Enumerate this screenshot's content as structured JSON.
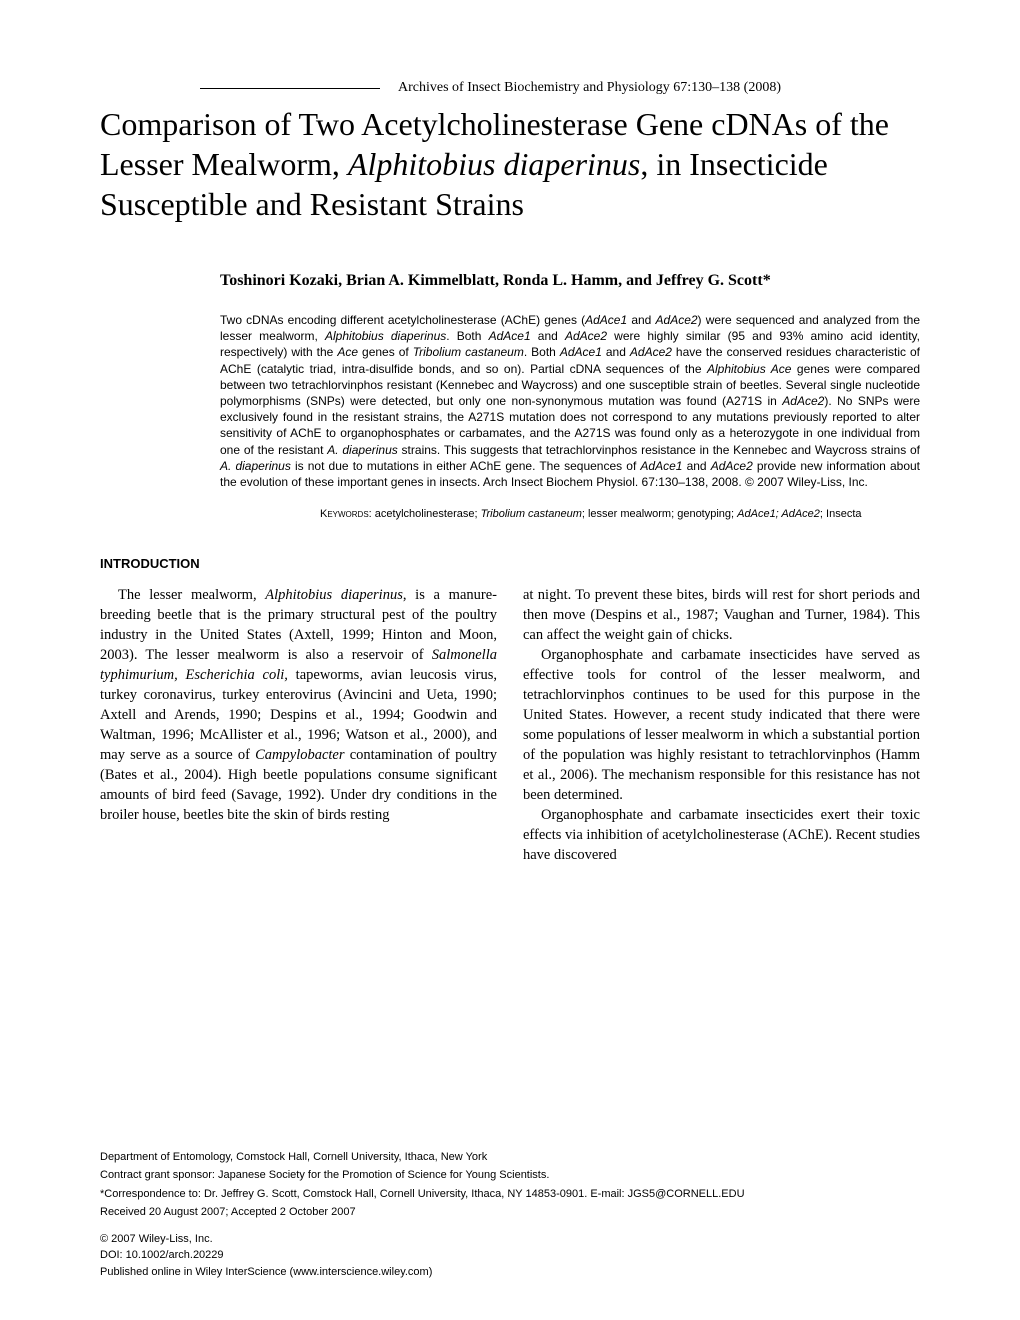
{
  "header": {
    "journal_ref": "Archives of Insect Biochemistry and Physiology 67:130–138 (2008)"
  },
  "title": {
    "pre": "Comparison of Two Acetylcholinesterase Gene cDNAs of the Lesser Mealworm, ",
    "italic": "Alphitobius diaperinus",
    "post": ", in Insecticide Susceptible and Resistant Strains"
  },
  "authors": "Toshinori Kozaki, Brian A. Kimmelblatt, Ronda L. Hamm, and Jeffrey G. Scott*",
  "abstract": {
    "p1a": "Two cDNAs encoding different acetylcholinesterase (AChE) genes (",
    "p1b": "AdAce1",
    "p1c": " and ",
    "p1d": "AdAce2",
    "p1e": ") were sequenced and analyzed from the lesser mealworm, ",
    "p1f": "Alphitobius diaperinus",
    "p1g": ". Both ",
    "p1h": "AdAce1",
    "p1i": " and ",
    "p1j": "AdAce2",
    "p1k": " were highly similar (95 and 93% amino acid identity, respectively) with the ",
    "p1l": "Ace",
    "p1m": " genes of ",
    "p1n": "Tribolium castaneum",
    "p1o": ". Both ",
    "p1p": "AdAce1",
    "p1q": " and ",
    "p1r": "AdAce2",
    "p1s": " have the conserved residues characteristic of AChE (catalytic triad, intra-disulfide bonds, and so on). Partial cDNA sequences of the ",
    "p1t": "Alphitobius Ace",
    "p1u": " genes were compared between two tetrachlorvinphos resistant (Kennebec and Waycross) and one susceptible strain of beetles. Several single nucleotide polymorphisms (SNPs) were detected, but only one non-synonymous mutation was found (A271S in ",
    "p1v": "AdAce2",
    "p1w": "). No SNPs were exclusively found in the resistant strains, the A271S mutation does not correspond to any mutations previously reported to alter sensitivity of AChE to organophosphates or carbamates, and the A271S was found only as a heterozygote in one individual from one of the resistant ",
    "p1x": "A. diaperinus",
    "p1y": " strains. This suggests that tetrachlorvinphos resistance in the Kennebec and Waycross strains of ",
    "p1z": "A. diaperinus",
    "p2a": " is not due to mutations in either AChE gene. The sequences of ",
    "p2b": "AdAce1",
    "p2c": " and ",
    "p2d": "AdAce2",
    "p2e": " provide new information about the evolution of these important genes in insects. Arch Insect Biochem Physiol. 67:130–138, 2008. © 2007 Wiley-Liss, Inc."
  },
  "keywords": {
    "label": "Keywords: ",
    "k1": "acetylcholinesterase; ",
    "k2": "Tribolium castaneum",
    "k3": "; lesser mealworm; genotyping; ",
    "k4": "AdAce1; AdAce2",
    "k5": "; Insecta"
  },
  "section_heading": "INTRODUCTION",
  "body": {
    "col1": {
      "p1a": "The lesser mealworm, ",
      "p1b": "Alphitobius diaperinus",
      "p1c": ", is a manure-breeding beetle that is the primary structural pest of the poultry industry in the United States (Axtell, 1999; Hinton and Moon, 2003). The lesser mealworm is also a reservoir of ",
      "p1d": "Salmonella typhimurium, Escherichia coli,",
      "p1e": " tapeworms, avian leucosis virus, turkey coronavirus, turkey enterovirus (Avincini and Ueta, 1990; Axtell and Arends, 1990; Despins et al., 1994; Goodwin and Waltman, 1996; McAllister et al., 1996; Watson et al., 2000), and may serve as a source of ",
      "p1f": "Campylobacter",
      "p1g": " contamination of poultry (Bates et al., 2004). High beetle populations consume significant amounts of bird feed (Savage, 1992). Under dry conditions in the broiler house, beetles bite the skin of birds resting"
    },
    "col2": {
      "p1": "at night. To prevent these bites, birds will rest for short periods and then move (Despins et al., 1987; Vaughan and Turner, 1984). This can affect the weight gain of chicks.",
      "p2": "Organophosphate and carbamate insecticides have served as effective tools for control of the lesser mealworm, and tetrachlorvinphos continues to be used for this purpose in the United States. However, a recent study indicated that there were some populations of lesser mealworm in which a substantial portion of the population was highly resistant to tetrachlorvinphos (Hamm et al., 2006). The mechanism responsible for this resistance has not been determined.",
      "p3": "Organophosphate and carbamate insecticides exert their toxic effects via inhibition of acetylcholinesterase (AChE). Recent studies have discovered"
    }
  },
  "footer": {
    "dept": "Department of Entomology, Comstock Hall, Cornell University, Ithaca, New York",
    "grant": "Contract grant sponsor: Japanese Society for the Promotion of Science for Young Scientists.",
    "correspondence": "*Correspondence to: Dr. Jeffrey G. Scott, Comstock Hall, Cornell University, Ithaca, NY 14853-0901. E-mail: JGS5@CORNELL.EDU",
    "received": "Received 20 August 2007; Accepted 2 October 2007",
    "copyright": "© 2007 Wiley-Liss, Inc.",
    "doi": "DOI: 10.1002/arch.20229",
    "published": "Published online in Wiley InterScience (www.interscience.wiley.com)"
  }
}
